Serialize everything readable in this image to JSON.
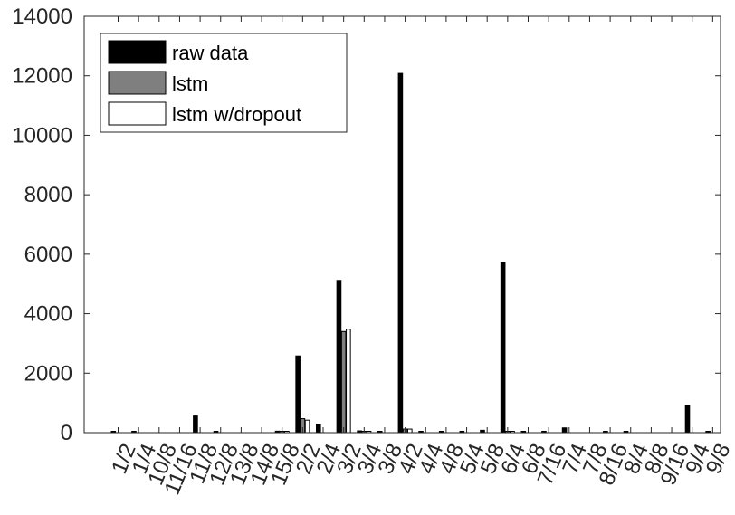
{
  "chart_data": {
    "type": "bar",
    "categories": [
      "1/2",
      "1/4",
      "10/8",
      "11/16",
      "11/8",
      "12/8",
      "13/8",
      "14/8",
      "15/8",
      "2/2",
      "2/4",
      "3/2",
      "3/4",
      "3/8",
      "4/2",
      "4/4",
      "4/8",
      "5/4",
      "5/8",
      "6/4",
      "6/8",
      "7/16",
      "7/4",
      "7/8",
      "8/16",
      "8/4",
      "8/8",
      "9/16",
      "9/4",
      "9/8"
    ],
    "series": [
      {
        "name": "raw data",
        "color": "#000000",
        "values": [
          40,
          30,
          0,
          0,
          560,
          30,
          0,
          0,
          50,
          2580,
          280,
          5120,
          60,
          40,
          12080,
          30,
          40,
          40,
          80,
          5720,
          30,
          30,
          160,
          0,
          30,
          30,
          0,
          0,
          900,
          30
        ]
      },
      {
        "name": "lstm",
        "color": "#7f7f7f",
        "values": [
          0,
          0,
          0,
          0,
          0,
          0,
          0,
          0,
          40,
          470,
          0,
          3400,
          40,
          0,
          120,
          0,
          0,
          0,
          0,
          20,
          0,
          0,
          0,
          0,
          0,
          0,
          0,
          0,
          0,
          0
        ]
      },
      {
        "name": "lstm w/dropout",
        "color": "#ffffff",
        "values": [
          0,
          0,
          0,
          0,
          0,
          0,
          0,
          0,
          30,
          420,
          0,
          3480,
          30,
          0,
          120,
          0,
          0,
          0,
          0,
          20,
          0,
          0,
          0,
          0,
          0,
          0,
          0,
          0,
          0,
          0
        ]
      }
    ],
    "ylim": [
      0,
      14000
    ],
    "yticks": [
      0,
      2000,
      4000,
      6000,
      8000,
      10000,
      12000,
      14000
    ],
    "xticks": [
      "1/2",
      "1/4",
      "10/8",
      "11/16",
      "11/8",
      "12/8",
      "13/8",
      "14/8",
      "15/8",
      "2/2",
      "2/4",
      "3/2",
      "3/4",
      "3/8",
      "4/2",
      "4/4",
      "4/8",
      "5/4",
      "5/8",
      "6/4",
      "6/8",
      "7/16",
      "7/4",
      "7/8",
      "8/16",
      "8/4",
      "8/8",
      "9/16",
      "9/4",
      "9/8"
    ],
    "legend_position": "top-left",
    "grid": false
  }
}
